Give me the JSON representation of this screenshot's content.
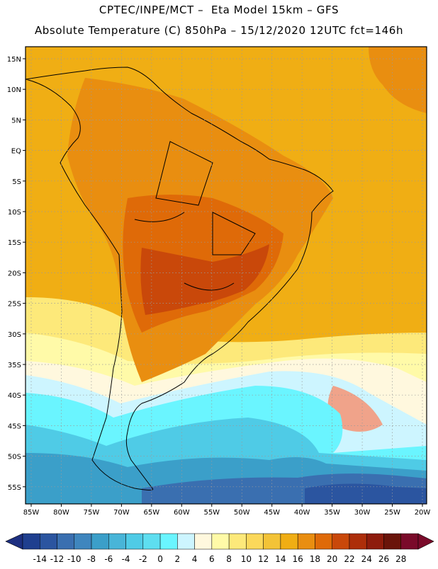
{
  "header": {
    "line1": "CPTEC/INPE/MCT –  Eta Model 15km – GFS",
    "line2": "Absolute Temperature (C) 850hPa – 15/12/2020 12UTC fct=146h"
  },
  "axes": {
    "lat_labels": [
      "15N",
      "10N",
      "5N",
      "EQ",
      "5S",
      "10S",
      "15S",
      "20S",
      "25S",
      "30S",
      "35S",
      "40S",
      "45S",
      "50S",
      "55S"
    ],
    "lon_labels": [
      "85W",
      "80W",
      "75W",
      "70W",
      "65W",
      "60W",
      "55W",
      "50W",
      "45W",
      "40W",
      "35W",
      "30W",
      "25W",
      "20W"
    ]
  },
  "colorbar": {
    "labels": [
      "-14",
      "-12",
      "-10",
      "-8",
      "-6",
      "-4",
      "-2",
      "0",
      "2",
      "4",
      "6",
      "8",
      "10",
      "12",
      "14",
      "16",
      "18",
      "20",
      "22",
      "24",
      "26",
      "28"
    ],
    "colors": [
      "#1f3f8f",
      "#2b55a0",
      "#3a6fb0",
      "#3f86be",
      "#3b9fc9",
      "#48b5d8",
      "#4fcbe6",
      "#5edef0",
      "#6af5ff",
      "#cdf5ff",
      "#fff8de",
      "#fffaa8",
      "#fde97a",
      "#fbd85a",
      "#f3c337",
      "#f0ae14",
      "#e98e10",
      "#df6a08",
      "#c9480a",
      "#ad2e0a",
      "#8e1c0c",
      "#6a140a",
      "#7a0a2a"
    ]
  },
  "map_colors": {
    "ocean_north": "#f0ae14",
    "warm": "#e98e10",
    "hot": "#df6a08",
    "hottest": "#c9480a",
    "yellow": "#fde97a",
    "light_yellow": "#fffaa8",
    "cream": "#fff8de",
    "pale_cyan": "#cdf5ff",
    "cyan": "#6af5ff",
    "cyan2": "#4fcbe6",
    "blue1": "#3b9fc9",
    "blue2": "#3a6fb0",
    "blue3": "#2b55a0",
    "salmon": "#f0a38a"
  }
}
